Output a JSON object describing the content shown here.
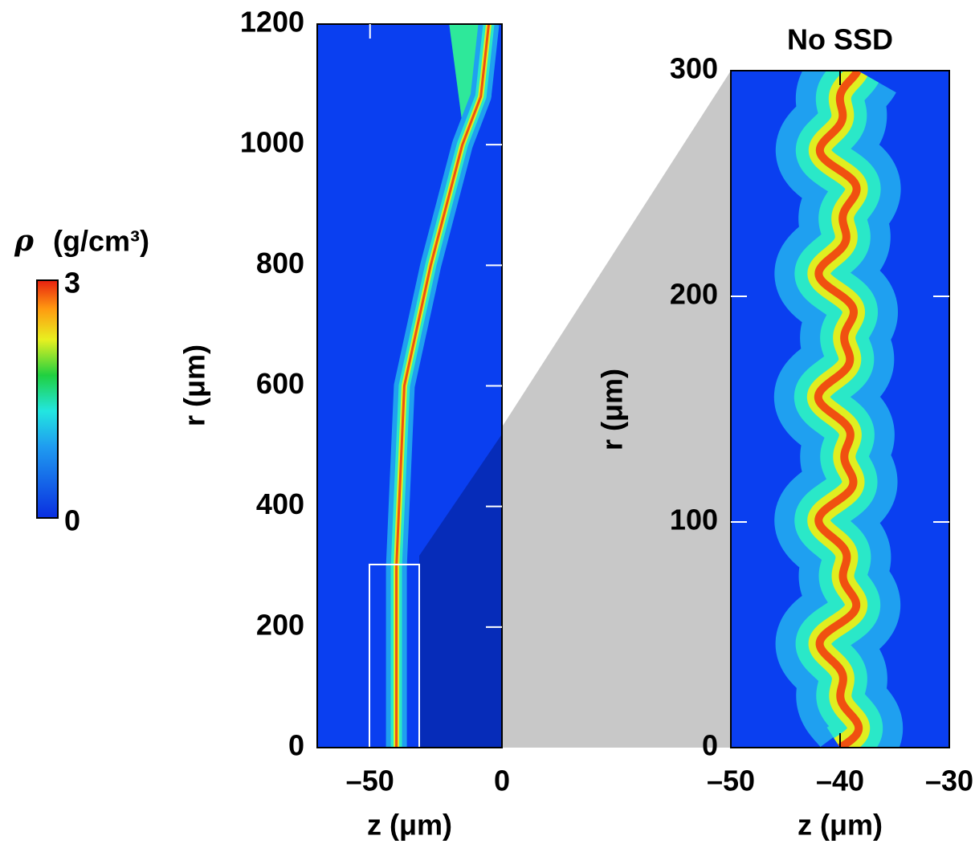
{
  "chart_data": [
    {
      "type": "heatmap",
      "ylabel": "r (μm)",
      "xlabel": "z (μm)",
      "xlim": [
        -70,
        0
      ],
      "xticks": [
        {
          "value": -50,
          "label": "–50"
        },
        0
      ],
      "ylim": [
        0,
        1200
      ],
      "yticks": [
        0,
        200,
        400,
        600,
        800,
        1000,
        1200
      ],
      "colorbar": {
        "symbol": "ρ",
        "unit": "(g/cm³)",
        "lim": [
          0,
          3
        ],
        "ticks": [
          0,
          3
        ]
      }
    },
    {
      "type": "heatmap",
      "title": "No SSD",
      "ylabel": "r (μm)",
      "xlabel": "z (μm)",
      "xlim": [
        -50,
        -30
      ],
      "xticks": [
        {
          "value": -50,
          "label": "–50"
        },
        {
          "value": -40,
          "label": "–40"
        },
        {
          "value": -30,
          "label": "–30"
        }
      ],
      "ylim": [
        0,
        300
      ],
      "yticks": [
        0,
        100,
        200,
        300
      ]
    }
  ]
}
